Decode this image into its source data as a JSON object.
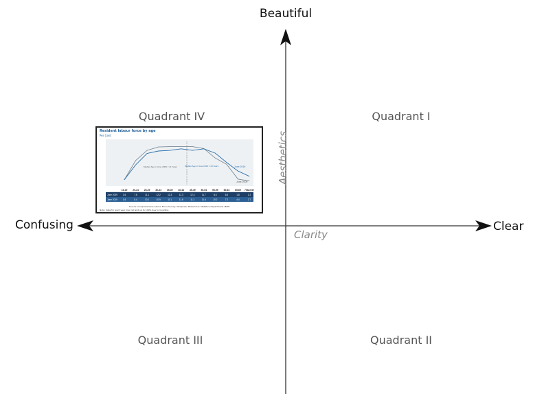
{
  "axes": {
    "top_label": "Beautiful",
    "left_label": "Confusing",
    "right_label": "Clear",
    "horizontal_name": "Clarity",
    "vertical_name": "Aesthetics"
  },
  "quadrants": {
    "q1": "Quadrant I",
    "q2": "Quadrant II",
    "q3": "Quadrant III",
    "q4": "Quadrant IV"
  },
  "colors": {
    "axis": "#333333",
    "series_2009": "#7a8a96",
    "series_2019": "#2a6fa8",
    "table_header": "#1f3f66",
    "table_row": "#2c5f93"
  },
  "chart_data": {
    "type": "line",
    "title": "Resident labour force by age",
    "subtitle": "Per Cent",
    "categories": [
      "15-19",
      "20-24",
      "25-29",
      "30-34",
      "35-39",
      "40-44",
      "45-49",
      "50-54",
      "55-59",
      "60-64",
      "65-69",
      "70&Over"
    ],
    "series": [
      {
        "name": "June 2009",
        "values": [
          1.6,
          7.8,
          11.1,
          12.2,
          12.3,
          12.3,
          12.3,
          11.7,
          8.6,
          6.6,
          1.8,
          1.2
        ]
      },
      {
        "name": "June 2019",
        "values": [
          1.6,
          6.4,
          10.1,
          10.9,
          11.1,
          11.6,
          11.1,
          11.6,
          10.2,
          7.2,
          4.4,
          2.7
        ]
      }
    ],
    "annotations": [
      "Median Age in June 2009 = 41 Years",
      "Median Age in June 2019 = 44 Years"
    ],
    "ylim": [
      0,
      14
    ],
    "source": "Source: Comprehensive Labour Force Survey, Manpower Research & Statistics Department, MOM",
    "note": "Note: Data for each year may not add up to 100% due to rounding."
  }
}
